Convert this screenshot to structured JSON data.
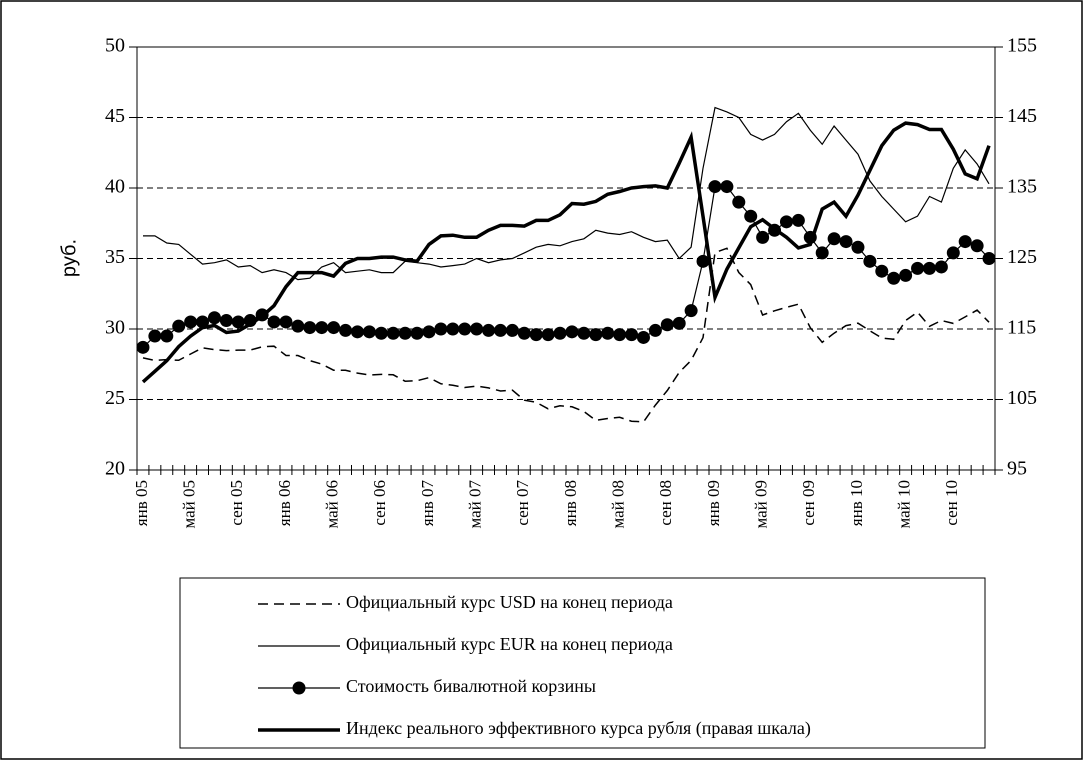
{
  "chart_data": {
    "type": "line",
    "ylabel": "руб.",
    "categories": [
      "янв 05",
      null,
      null,
      null,
      "май 05",
      null,
      null,
      null,
      "сен 05",
      null,
      null,
      null,
      "янв 06",
      null,
      null,
      null,
      "май 06",
      null,
      null,
      null,
      "сен 06",
      null,
      null,
      null,
      "янв 07",
      null,
      null,
      null,
      "май 07",
      null,
      null,
      null,
      "сен 07",
      null,
      null,
      null,
      "янв 08",
      null,
      null,
      null,
      "май 08",
      null,
      null,
      null,
      "сен 08",
      null,
      null,
      null,
      "янв 09",
      null,
      null,
      null,
      "май 09",
      null,
      null,
      null,
      "сен 09",
      null,
      null,
      null,
      "янв 10",
      null,
      null,
      null,
      "май 10",
      null,
      null,
      null,
      "сен 10",
      null,
      null,
      null
    ],
    "ylim": [
      20,
      50
    ],
    "yticks": [
      20,
      25,
      30,
      35,
      40,
      45,
      50
    ],
    "y2lim": [
      95,
      155
    ],
    "y2ticks": [
      95,
      105,
      115,
      125,
      135,
      145,
      155
    ],
    "grid": true,
    "series": [
      {
        "name": "Официальный курс USD на конец периода",
        "color": "#000000",
        "dashed": true,
        "linewidth": 1.5,
        "values": [
          27.95,
          27.77,
          27.83,
          27.78,
          28.23,
          28.67,
          28.54,
          28.47,
          28.5,
          28.5,
          28.74,
          28.78,
          28.12,
          28.12,
          27.76,
          27.51,
          27.08,
          27.07,
          26.87,
          26.74,
          26.78,
          26.75,
          26.3,
          26.33,
          26.55,
          26.11,
          26.01,
          25.85,
          25.95,
          25.82,
          25.6,
          25.66,
          24.95,
          24.8,
          24.34,
          24.55,
          24.48,
          24.15,
          23.52,
          23.65,
          23.74,
          23.46,
          23.41,
          24.6,
          25.64,
          26.92,
          27.77,
          29.38,
          35.42,
          35.72,
          34.01,
          33.15,
          30.99,
          31.29,
          31.54,
          31.76,
          30.09,
          29.06,
          29.7,
          30.24,
          30.41,
          29.87,
          29.36,
          29.27,
          30.6,
          31.2,
          30.19,
          30.6,
          30.4,
          30.86,
          31.34,
          30.48
        ]
      },
      {
        "name": "Официальный курс EUR на конец периода",
        "color": "#000000",
        "linewidth": 1.2,
        "values": [
          36.6,
          36.6,
          36.1,
          36.0,
          35.3,
          34.6,
          34.7,
          34.9,
          34.4,
          34.5,
          34.0,
          34.2,
          34.0,
          33.5,
          33.6,
          34.4,
          34.7,
          34.0,
          34.1,
          34.2,
          34.0,
          34.0,
          34.8,
          34.7,
          34.6,
          34.4,
          34.5,
          34.6,
          35.0,
          34.7,
          34.9,
          35.0,
          35.4,
          35.8,
          36.0,
          35.9,
          36.2,
          36.4,
          37.0,
          36.8,
          36.7,
          36.9,
          36.5,
          36.2,
          36.3,
          35.0,
          35.8,
          41.4,
          45.7,
          45.4,
          45.0,
          43.8,
          43.4,
          43.8,
          44.7,
          45.3,
          44.1,
          43.1,
          44.4,
          43.4,
          42.4,
          40.5,
          39.4,
          38.5,
          37.6,
          38.0,
          39.4,
          39.0,
          41.4,
          42.7,
          41.7,
          40.3
        ]
      },
      {
        "name": "Стоимость бивалютной корзины",
        "color": "#000000",
        "marker": "circle",
        "linewidth": 1.2,
        "values": [
          28.7,
          29.5,
          29.5,
          30.2,
          30.5,
          30.5,
          30.8,
          30.6,
          30.5,
          30.6,
          31.0,
          30.5,
          30.5,
          30.2,
          30.1,
          30.1,
          30.1,
          29.9,
          29.8,
          29.8,
          29.7,
          29.7,
          29.7,
          29.7,
          29.8,
          30.0,
          30.0,
          30.0,
          30.0,
          29.9,
          29.9,
          29.9,
          29.7,
          29.6,
          29.6,
          29.7,
          29.8,
          29.7,
          29.6,
          29.7,
          29.6,
          29.6,
          29.4,
          29.9,
          30.3,
          30.4,
          31.3,
          34.8,
          40.1,
          40.1,
          39.0,
          38.0,
          36.5,
          37.0,
          37.6,
          37.7,
          36.5,
          35.4,
          36.4,
          36.2,
          35.8,
          34.8,
          34.1,
          33.6,
          33.8,
          34.3,
          34.3,
          34.4,
          35.4,
          36.2,
          35.9,
          35.0
        ]
      },
      {
        "name": "Индекс реального эффективного курса рубля (правая шкала)",
        "color": "#000000",
        "axis": "y2",
        "linewidth": 3.5,
        "values": [
          107.5,
          109,
          110.5,
          112.5,
          114,
          115.2,
          115.5,
          114.5,
          114.7,
          115.7,
          116.8,
          118.3,
          121,
          123,
          123,
          123,
          122.5,
          124.3,
          125,
          125,
          125.2,
          125.2,
          124.8,
          124.6,
          127,
          128.2,
          128.3,
          128,
          128,
          129,
          129.7,
          129.7,
          129.6,
          130.4,
          130.4,
          131.2,
          132.8,
          132.7,
          133.1,
          134.1,
          134.5,
          135,
          135.2,
          135.3,
          135,
          138.5,
          142.2,
          131,
          119.5,
          123.5,
          126.5,
          129.5,
          130.5,
          129.2,
          128,
          126.5,
          127,
          132,
          133,
          131,
          134,
          137.5,
          141,
          143.2,
          144.2,
          144,
          143.3,
          143.3,
          140.5,
          137,
          136.3,
          141
        ]
      }
    ]
  }
}
